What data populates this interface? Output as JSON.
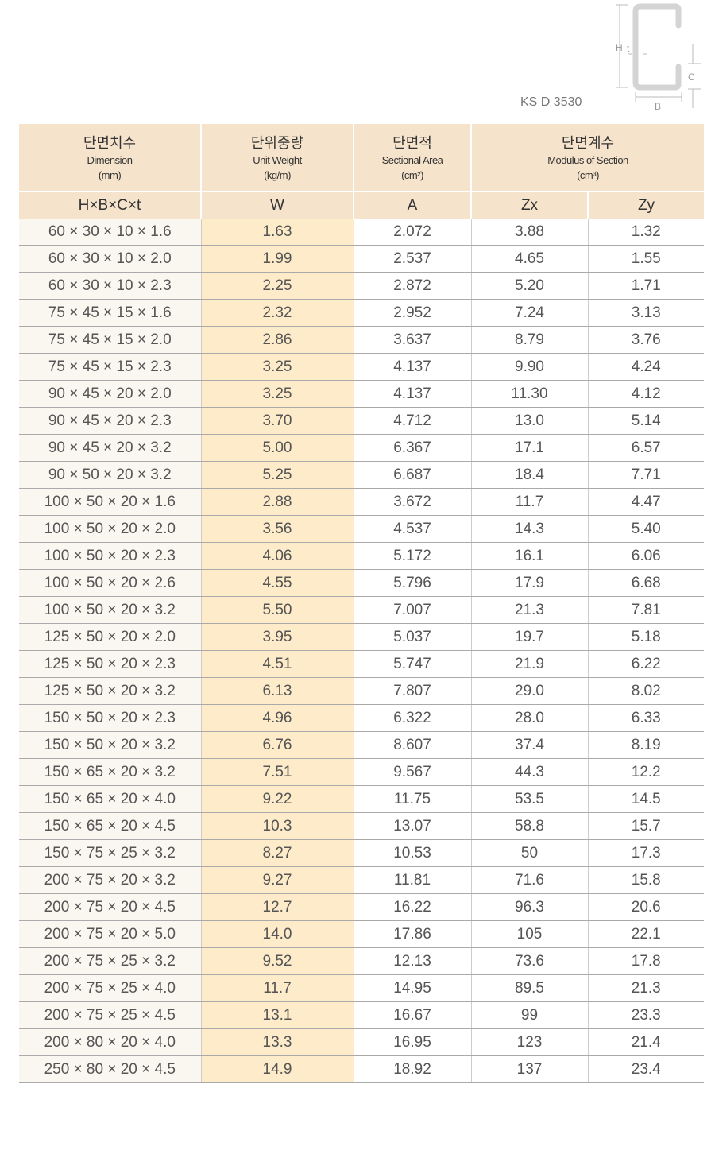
{
  "standard": "KS D 3530",
  "diagram": {
    "labels": {
      "H": "H",
      "t": "t",
      "C": "C",
      "B": "B"
    },
    "color": "#cccccc"
  },
  "header": {
    "columns": [
      {
        "ko": "단면치수",
        "en": "Dimension",
        "unit": "(mm)"
      },
      {
        "ko": "단위중량",
        "en": "Unit Weight",
        "unit": "(kg/m)"
      },
      {
        "ko": "단면적",
        "en": "Sectional Area",
        "unit": "(cm²)"
      },
      {
        "ko": "단면계수",
        "en": "Modulus of Section",
        "unit": "(cm³)"
      }
    ],
    "symbols": [
      "H×B×C×t",
      "W",
      "A",
      "Zx",
      "Zy"
    ],
    "bg": "#f6e3cc"
  },
  "rows": [
    [
      "60 × 30 × 10 × 1.6",
      "1.63",
      "2.072",
      "3.88",
      "1.32"
    ],
    [
      "60 × 30 × 10 × 2.0",
      "1.99",
      "2.537",
      "4.65",
      "1.55"
    ],
    [
      "60 × 30 × 10 × 2.3",
      "2.25",
      "2.872",
      "5.20",
      "1.71"
    ],
    [
      "75 × 45 × 15 × 1.6",
      "2.32",
      "2.952",
      "7.24",
      "3.13"
    ],
    [
      "75 × 45 × 15 × 2.0",
      "2.86",
      "3.637",
      "8.79",
      "3.76"
    ],
    [
      "75 × 45 × 15 × 2.3",
      "3.25",
      "4.137",
      "9.90",
      "4.24"
    ],
    [
      "90 × 45 × 20 × 2.0",
      "3.25",
      "4.137",
      "11.30",
      "4.12"
    ],
    [
      "90 × 45 × 20 × 2.3",
      "3.70",
      "4.712",
      "13.0",
      "5.14"
    ],
    [
      "90 × 45 × 20 × 3.2",
      "5.00",
      "6.367",
      "17.1",
      "6.57"
    ],
    [
      "90 × 50 × 20 × 3.2",
      "5.25",
      "6.687",
      "18.4",
      "7.71"
    ],
    [
      "100 × 50 × 20 × 1.6",
      "2.88",
      "3.672",
      "11.7",
      "4.47"
    ],
    [
      "100 × 50 × 20 × 2.0",
      "3.56",
      "4.537",
      "14.3",
      "5.40"
    ],
    [
      "100 × 50 × 20 × 2.3",
      "4.06",
      "5.172",
      "16.1",
      "6.06"
    ],
    [
      "100 × 50 × 20 × 2.6",
      "4.55",
      "5.796",
      "17.9",
      "6.68"
    ],
    [
      "100 × 50 × 20 × 3.2",
      "5.50",
      "7.007",
      "21.3",
      "7.81"
    ],
    [
      "125 × 50 × 20 × 2.0",
      "3.95",
      "5.037",
      "19.7",
      "5.18"
    ],
    [
      "125 × 50 × 20 × 2.3",
      "4.51",
      "5.747",
      "21.9",
      "6.22"
    ],
    [
      "125 × 50 × 20 × 3.2",
      "6.13",
      "7.807",
      "29.0",
      "8.02"
    ],
    [
      "150 × 50 × 20 × 2.3",
      "4.96",
      "6.322",
      "28.0",
      "6.33"
    ],
    [
      "150 × 50 × 20 × 3.2",
      "6.76",
      "8.607",
      "37.4",
      "8.19"
    ],
    [
      "150 × 65 × 20 × 3.2",
      "7.51",
      "9.567",
      "44.3",
      "12.2"
    ],
    [
      "150 × 65 × 20 × 4.0",
      "9.22",
      "11.75",
      "53.5",
      "14.5"
    ],
    [
      "150 × 65 × 20 × 4.5",
      "10.3",
      "13.07",
      "58.8",
      "15.7"
    ],
    [
      "150 × 75 × 25 × 3.2",
      "8.27",
      "10.53",
      "50",
      "17.3"
    ],
    [
      "200 × 75 × 20 × 3.2",
      "9.27",
      "11.81",
      "71.6",
      "15.8"
    ],
    [
      "200 × 75 × 20 × 4.5",
      "12.7",
      "16.22",
      "96.3",
      "20.6"
    ],
    [
      "200 × 75 × 20 × 5.0",
      "14.0",
      "17.86",
      "105",
      "22.1"
    ],
    [
      "200 × 75 × 25 × 3.2",
      "9.52",
      "12.13",
      "73.6",
      "17.8"
    ],
    [
      "200 × 75 × 25 × 4.0",
      "11.7",
      "14.95",
      "89.5",
      "21.3"
    ],
    [
      "200 × 75 × 25 × 4.5",
      "13.1",
      "16.67",
      "99",
      "23.3"
    ],
    [
      "200 × 80 × 20 × 4.0",
      "13.3",
      "16.95",
      "123",
      "21.4"
    ],
    [
      "250 × 80 × 20 × 4.5",
      "14.9",
      "18.92",
      "137",
      "23.4"
    ]
  ]
}
